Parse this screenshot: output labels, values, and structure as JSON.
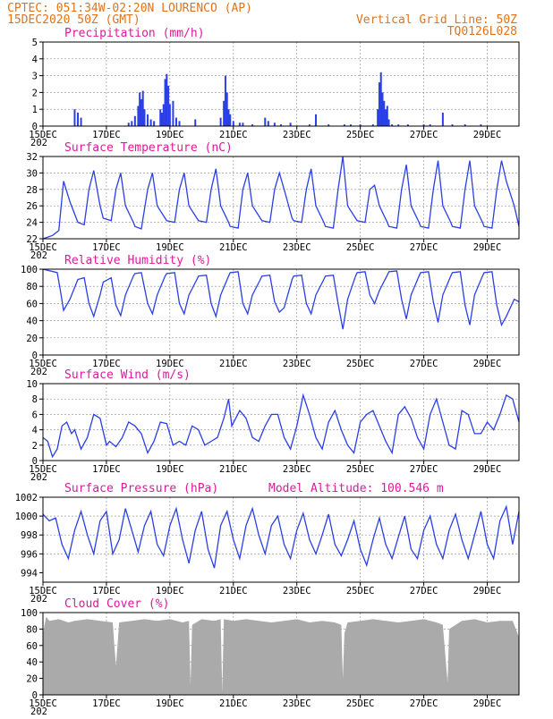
{
  "header": {
    "line1_left": "CPTEC:   051:34W-02:20N  LOURENCO (AP)",
    "line2_left": "15DEC2020 50Z (GMT)",
    "line1_right": "Vertical Grid Line: 50Z",
    "line2_right": "TQ0126L028"
  },
  "x_axis": {
    "day_range": [
      15,
      30
    ],
    "tick_labels": [
      "15DEC",
      "17DEC",
      "19DEC",
      "21DEC",
      "23DEC",
      "25DEC",
      "27DEC",
      "29DEC"
    ],
    "tick_days": [
      15,
      17,
      19,
      21,
      23,
      25,
      27,
      29
    ],
    "year_fragment": "202"
  },
  "colors": {
    "header": "#e0731b",
    "title": "#e0199b",
    "series": "#2a3fe6",
    "cloud": "#aaaaaa"
  },
  "chart_data": [
    {
      "type": "bar",
      "title": "Precipitation (mm/h)",
      "ylim": [
        0,
        5
      ],
      "yticks": [
        "0",
        "1",
        "2",
        "3",
        "4",
        "5"
      ],
      "x_unit": "day of December 2020",
      "x": [
        16.0,
        16.1,
        16.2,
        17.7,
        17.8,
        17.9,
        18.0,
        18.05,
        18.1,
        18.15,
        18.2,
        18.3,
        18.4,
        18.5,
        18.7,
        18.75,
        18.8,
        18.85,
        18.9,
        18.95,
        19.0,
        19.1,
        19.2,
        19.3,
        19.8,
        20.6,
        20.7,
        20.75,
        20.8,
        20.85,
        20.9,
        21.0,
        21.2,
        21.3,
        21.6,
        22.0,
        22.1,
        22.3,
        22.5,
        22.8,
        23.4,
        23.6,
        24.0,
        24.5,
        24.7,
        25.0,
        25.4,
        25.55,
        25.6,
        25.65,
        25.7,
        25.75,
        25.8,
        25.85,
        25.9,
        26.0,
        26.2,
        26.5,
        27.0,
        27.2,
        27.6,
        27.9,
        28.3,
        28.8
      ],
      "values": [
        1.0,
        0.8,
        0.5,
        0.2,
        0.3,
        0.6,
        1.2,
        2.0,
        1.6,
        2.1,
        1.0,
        0.7,
        0.4,
        0.3,
        1.0,
        0.8,
        1.3,
        2.8,
        3.1,
        2.4,
        1.3,
        1.5,
        0.5,
        0.3,
        0.4,
        0.5,
        1.5,
        3.0,
        2.0,
        1.0,
        0.7,
        0.3,
        0.2,
        0.2,
        0.1,
        0.5,
        0.3,
        0.2,
        0.1,
        0.2,
        0.1,
        0.7,
        0.1,
        0.1,
        0.1,
        0.1,
        0.1,
        1.0,
        2.6,
        3.2,
        2.0,
        1.5,
        1.0,
        1.2,
        0.4,
        0.1,
        0.1,
        0.1,
        0.1,
        0.1,
        0.8,
        0.1,
        0.1,
        0.1
      ]
    },
    {
      "type": "line",
      "title": "Surface Temperature (nC)",
      "ylim": [
        22,
        32
      ],
      "yticks": [
        "22",
        "24",
        "26",
        "28",
        "30",
        "32"
      ],
      "x": [
        15.0,
        15.3,
        15.5,
        15.65,
        15.85,
        16.1,
        16.3,
        16.45,
        16.6,
        16.8,
        16.9,
        17.15,
        17.3,
        17.45,
        17.6,
        17.85,
        17.9,
        18.1,
        18.3,
        18.45,
        18.6,
        18.85,
        18.9,
        19.15,
        19.3,
        19.45,
        19.6,
        19.85,
        19.9,
        20.15,
        20.3,
        20.45,
        20.6,
        20.85,
        20.9,
        21.15,
        21.3,
        21.45,
        21.6,
        21.85,
        21.9,
        22.15,
        22.3,
        22.45,
        22.6,
        22.85,
        22.9,
        23.15,
        23.3,
        23.45,
        23.6,
        23.85,
        23.9,
        24.15,
        24.3,
        24.45,
        24.6,
        24.85,
        24.9,
        25.15,
        25.3,
        25.45,
        25.6,
        25.85,
        25.9,
        26.15,
        26.3,
        26.45,
        26.6,
        26.85,
        26.9,
        27.15,
        27.3,
        27.45,
        27.6,
        27.85,
        27.9,
        28.15,
        28.3,
        28.45,
        28.6,
        28.85,
        28.9,
        29.15,
        29.3,
        29.45,
        29.6,
        29.85,
        30.0
      ],
      "values": [
        22.0,
        22.4,
        23.0,
        29.0,
        26.5,
        24.0,
        23.7,
        28.0,
        30.3,
        26.0,
        24.5,
        24.2,
        28.0,
        30.0,
        26.0,
        24.0,
        23.5,
        23.2,
        28.0,
        30.0,
        26.0,
        24.5,
        24.2,
        24.0,
        28.0,
        30.0,
        26.0,
        24.5,
        24.2,
        24.0,
        28.0,
        30.5,
        26.0,
        24.0,
        23.5,
        23.3,
        28.0,
        30.0,
        26.0,
        24.5,
        24.2,
        24.0,
        28.0,
        30.0,
        28.0,
        24.5,
        24.2,
        24.0,
        28.0,
        30.5,
        26.0,
        24.0,
        23.5,
        23.3,
        28.0,
        32.0,
        26.0,
        24.5,
        24.2,
        24.0,
        28.0,
        28.5,
        26.0,
        24.0,
        23.5,
        23.3,
        28.0,
        31.0,
        26.0,
        24.0,
        23.5,
        23.3,
        28.0,
        31.5,
        26.0,
        24.0,
        23.5,
        23.3,
        28.0,
        31.5,
        26.0,
        24.0,
        23.5,
        23.3,
        28.0,
        31.5,
        29.0,
        26.0,
        23.5
      ]
    },
    {
      "type": "line",
      "title": "Relative Humidity (%)",
      "ylim": [
        0,
        100
      ],
      "yticks": [
        "0",
        "20",
        "40",
        "60",
        "80",
        "100"
      ],
      "x": [
        15.0,
        15.45,
        15.55,
        15.65,
        15.85,
        16.1,
        16.3,
        16.45,
        16.6,
        16.8,
        16.9,
        17.15,
        17.3,
        17.45,
        17.6,
        17.85,
        17.9,
        18.1,
        18.3,
        18.45,
        18.6,
        18.85,
        18.9,
        19.15,
        19.3,
        19.45,
        19.6,
        19.85,
        19.9,
        20.15,
        20.3,
        20.45,
        20.6,
        20.85,
        20.9,
        21.15,
        21.3,
        21.45,
        21.6,
        21.85,
        21.9,
        22.15,
        22.3,
        22.45,
        22.6,
        22.85,
        22.9,
        23.15,
        23.3,
        23.45,
        23.6,
        23.85,
        23.9,
        24.15,
        24.3,
        24.45,
        24.6,
        24.85,
        24.9,
        25.15,
        25.3,
        25.45,
        25.6,
        25.85,
        25.9,
        26.15,
        26.3,
        26.45,
        26.6,
        26.85,
        26.9,
        27.15,
        27.3,
        27.45,
        27.6,
        27.85,
        27.9,
        28.15,
        28.3,
        28.45,
        28.6,
        28.85,
        28.9,
        29.15,
        29.3,
        29.45,
        29.6,
        29.85,
        30.0
      ],
      "values": [
        100.0,
        96.0,
        75.0,
        52.0,
        65.0,
        88.0,
        90.0,
        60.0,
        45.0,
        70.0,
        85.0,
        90.0,
        58.0,
        46.0,
        70.0,
        92.0,
        95.0,
        96.0,
        60.0,
        48.0,
        70.0,
        92.0,
        95.0,
        96.0,
        60.0,
        48.0,
        70.0,
        88.0,
        92.0,
        93.0,
        60.0,
        45.0,
        70.0,
        92.0,
        96.0,
        97.0,
        60.0,
        48.0,
        70.0,
        88.0,
        92.0,
        93.0,
        62.0,
        50.0,
        55.0,
        88.0,
        92.0,
        93.0,
        60.0,
        48.0,
        70.0,
        88.0,
        92.0,
        93.0,
        60.0,
        30.0,
        65.0,
        92.0,
        96.0,
        97.0,
        70.0,
        60.0,
        75.0,
        93.0,
        97.0,
        98.0,
        65.0,
        42.0,
        70.0,
        92.0,
        96.0,
        97.0,
        62.0,
        38.0,
        70.0,
        92.0,
        96.0,
        97.0,
        58.0,
        35.0,
        70.0,
        92.0,
        96.0,
        97.0,
        58.0,
        35.0,
        45.0,
        65.0,
        62.0
      ]
    },
    {
      "type": "line",
      "title": "Surface Wind (m/s)",
      "ylim": [
        0,
        10
      ],
      "yticks": [
        "0",
        "2",
        "4",
        "6",
        "8",
        "10"
      ],
      "x": [
        15.0,
        15.15,
        15.3,
        15.45,
        15.6,
        15.75,
        15.9,
        16.0,
        16.2,
        16.4,
        16.6,
        16.8,
        17.0,
        17.1,
        17.3,
        17.5,
        17.7,
        17.9,
        18.1,
        18.3,
        18.5,
        18.7,
        18.9,
        19.1,
        19.3,
        19.5,
        19.7,
        19.9,
        20.1,
        20.3,
        20.5,
        20.7,
        20.85,
        20.95,
        21.2,
        21.4,
        21.6,
        21.8,
        22.0,
        22.2,
        22.4,
        22.6,
        22.8,
        23.0,
        23.2,
        23.4,
        23.6,
        23.8,
        24.0,
        24.2,
        24.4,
        24.6,
        24.8,
        25.0,
        25.2,
        25.4,
        25.6,
        25.8,
        26.0,
        26.2,
        26.4,
        26.6,
        26.8,
        27.0,
        27.2,
        27.4,
        27.6,
        27.8,
        28.0,
        28.2,
        28.4,
        28.6,
        28.8,
        29.0,
        29.2,
        29.4,
        29.6,
        29.8,
        30.0
      ],
      "values": [
        3.0,
        2.5,
        0.5,
        1.5,
        4.5,
        5.0,
        3.5,
        4.0,
        1.5,
        3.0,
        6.0,
        5.5,
        2.0,
        2.5,
        1.8,
        3.0,
        5.0,
        4.5,
        3.5,
        1.0,
        2.5,
        5.0,
        4.8,
        2.0,
        2.5,
        2.0,
        4.5,
        4.0,
        2.0,
        2.5,
        3.0,
        5.5,
        8.0,
        4.5,
        6.5,
        5.5,
        3.0,
        2.5,
        4.5,
        6.0,
        6.0,
        3.0,
        1.5,
        4.5,
        8.5,
        6.0,
        3.0,
        1.5,
        5.0,
        6.5,
        4.0,
        2.0,
        1.0,
        5.0,
        6.0,
        6.5,
        4.5,
        2.5,
        1.0,
        6.0,
        7.0,
        5.5,
        3.0,
        1.5,
        6.0,
        8.0,
        5.0,
        2.0,
        1.5,
        6.5,
        6.0,
        3.5,
        3.5,
        5.0,
        4.0,
        6.0,
        8.5,
        8.0,
        5.0
      ]
    },
    {
      "type": "line",
      "title": "Surface Pressure (hPa)",
      "annotation": "Model Altitude: 100.546  m",
      "ylim": [
        993,
        1002
      ],
      "yticks": [
        "994",
        "996",
        "998",
        "1000",
        "1002"
      ],
      "x": [
        15.0,
        15.2,
        15.4,
        15.6,
        15.8,
        16.0,
        16.2,
        16.4,
        16.6,
        16.8,
        17.0,
        17.2,
        17.4,
        17.6,
        17.8,
        18.0,
        18.2,
        18.4,
        18.6,
        18.8,
        19.0,
        19.2,
        19.4,
        19.6,
        19.8,
        20.0,
        20.2,
        20.4,
        20.6,
        20.8,
        21.0,
        21.2,
        21.4,
        21.6,
        21.8,
        22.0,
        22.2,
        22.4,
        22.6,
        22.8,
        23.0,
        23.2,
        23.4,
        23.6,
        23.8,
        24.0,
        24.2,
        24.4,
        24.6,
        24.8,
        25.0,
        25.2,
        25.4,
        25.6,
        25.8,
        26.0,
        26.2,
        26.4,
        26.6,
        26.8,
        27.0,
        27.2,
        27.4,
        27.6,
        27.8,
        28.0,
        28.2,
        28.4,
        28.6,
        28.8,
        29.0,
        29.2,
        29.4,
        29.6,
        29.8,
        30.0
      ],
      "values": [
        1000.2,
        999.5,
        999.8,
        997.0,
        995.5,
        998.5,
        1000.5,
        998.0,
        996.0,
        999.5,
        1000.5,
        996.0,
        997.5,
        1000.8,
        998.5,
        996.2,
        999.0,
        1000.5,
        997.0,
        995.8,
        999.0,
        1000.8,
        997.5,
        995.0,
        998.5,
        1000.5,
        996.5,
        994.5,
        999.0,
        1000.5,
        997.5,
        995.5,
        999.0,
        1000.8,
        998.0,
        996.0,
        999.0,
        1000.0,
        997.0,
        995.5,
        998.5,
        1000.3,
        997.5,
        996.0,
        998.0,
        1000.2,
        997.0,
        995.8,
        997.5,
        999.5,
        996.5,
        994.8,
        997.5,
        999.8,
        997.0,
        995.5,
        997.8,
        1000.0,
        996.5,
        995.5,
        998.5,
        1000.0,
        997.0,
        995.5,
        998.5,
        1000.2,
        997.5,
        995.5,
        998.0,
        1000.5,
        997.0,
        995.5,
        999.5,
        1001.0,
        997.0,
        1000.5
      ]
    },
    {
      "type": "area",
      "title": "Cloud Cover (%)",
      "ylim": [
        0,
        100
      ],
      "yticks": [
        "0",
        "20",
        "40",
        "60",
        "80",
        "100"
      ],
      "x": [
        15.0,
        15.1,
        15.2,
        15.5,
        15.8,
        16.0,
        16.4,
        16.8,
        17.2,
        17.25,
        17.3,
        17.35,
        17.4,
        17.8,
        18.2,
        18.6,
        19.0,
        19.4,
        19.6,
        19.65,
        19.7,
        20.0,
        20.4,
        20.6,
        20.65,
        20.7,
        21.0,
        21.4,
        21.8,
        22.2,
        22.6,
        23.0,
        23.4,
        23.8,
        24.2,
        24.4,
        24.45,
        24.5,
        24.6,
        25.0,
        25.4,
        25.8,
        26.2,
        26.6,
        27.0,
        27.4,
        27.6,
        27.75,
        27.8,
        28.2,
        28.6,
        29.0,
        29.4,
        29.8,
        30.0
      ],
      "values": [
        75.0,
        95.0,
        90.0,
        92.0,
        88.0,
        90.0,
        92.0,
        90.0,
        88.0,
        60.0,
        35.0,
        60.0,
        88.0,
        90.0,
        92.0,
        90.0,
        92.0,
        88.0,
        90.0,
        12.0,
        85.0,
        92.0,
        90.0,
        92.0,
        3.0,
        92.0,
        90.0,
        92.0,
        90.0,
        88.0,
        90.0,
        92.0,
        88.0,
        90.0,
        88.0,
        85.0,
        20.0,
        75.0,
        88.0,
        90.0,
        92.0,
        90.0,
        88.0,
        90.0,
        92.0,
        88.0,
        85.0,
        15.0,
        80.0,
        90.0,
        92.0,
        88.0,
        90.0,
        90.0,
        70.0
      ]
    }
  ]
}
